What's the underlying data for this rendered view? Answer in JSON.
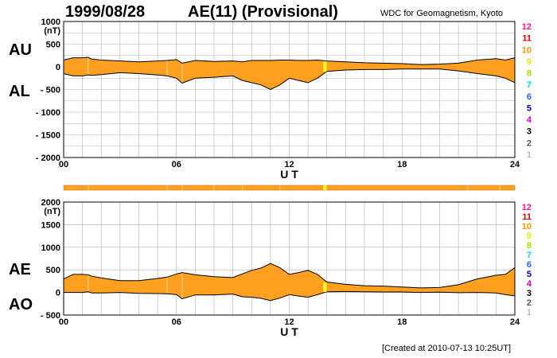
{
  "header": {
    "date": "1999/08/28",
    "title": "AE(11) (Provisional)",
    "credit": "WDC for Geomagnetism, Kyoto"
  },
  "footer": {
    "created": "[Created at 2010-07-13 10:25UT]"
  },
  "colors": {
    "fill": "#ffa020",
    "spike": "#ffff20",
    "grid": "#b0b0b0",
    "outline": "#000000",
    "bar": "#ffa020"
  },
  "station_scale": {
    "labels": [
      "12",
      "11",
      "10",
      "9",
      "8",
      "7",
      "6",
      "5",
      "4",
      "3",
      "2",
      "1"
    ],
    "colors": [
      "#ff1493",
      "#e00000",
      "#ff9900",
      "#e8e800",
      "#a0e000",
      "#00d8d8",
      "#1e66ff",
      "#0000b0",
      "#d000d0",
      "#000000",
      "#555555",
      "#bbbbbb"
    ]
  },
  "chart_data": [
    {
      "type": "area",
      "upper_label": "AU",
      "lower_label": "AL",
      "ylabel": "(nT)",
      "xlabel": "U T",
      "xlim": [
        0,
        24
      ],
      "xticks": [
        "00",
        "06",
        "12",
        "18",
        "24"
      ],
      "ylim": [
        -2000,
        1000
      ],
      "yticks": [
        "1000",
        "500",
        "0",
        "- 500",
        "- 1000",
        "- 1500",
        "- 2000"
      ],
      "grid": true,
      "x": [
        0,
        0.5,
        1,
        1.3,
        1.5,
        2,
        3,
        4,
        5,
        5.5,
        6,
        6.3,
        7,
        8,
        9,
        9.5,
        10,
        10.5,
        11,
        11.5,
        12,
        12.5,
        13,
        13.5,
        14,
        15,
        16,
        17,
        18,
        19,
        20,
        21,
        22,
        23,
        23.5,
        24
      ],
      "series": [
        {
          "name": "AU",
          "values": [
            150,
            200,
            200,
            210,
            170,
            150,
            130,
            110,
            130,
            140,
            160,
            80,
            140,
            120,
            130,
            110,
            140,
            140,
            140,
            150,
            150,
            140,
            140,
            150,
            130,
            110,
            90,
            80,
            70,
            50,
            60,
            80,
            150,
            180,
            150,
            200
          ]
        },
        {
          "name": "AL",
          "values": [
            -150,
            -200,
            -200,
            -180,
            -190,
            -170,
            -130,
            -150,
            -180,
            -200,
            -250,
            -360,
            -250,
            -230,
            -200,
            -300,
            -350,
            -400,
            -500,
            -400,
            -250,
            -300,
            -350,
            -250,
            -100,
            -70,
            -60,
            -60,
            -50,
            -50,
            -50,
            -90,
            -150,
            -200,
            -250,
            -350
          ]
        }
      ]
    },
    {
      "type": "area",
      "upper_label": "AE",
      "lower_label": "AO",
      "ylabel": "(nT)",
      "xlabel": "U T",
      "xlim": [
        0,
        24
      ],
      "xticks": [
        "00",
        "06",
        "12",
        "18",
        "24"
      ],
      "ylim": [
        -500,
        2000
      ],
      "yticks": [
        "2000",
        "1500",
        "1000",
        "500",
        "0",
        "- 500"
      ],
      "grid": true,
      "x": [
        0,
        0.5,
        1,
        1.3,
        1.5,
        2,
        3,
        4,
        5,
        5.5,
        6,
        6.3,
        7,
        8,
        9,
        9.5,
        10,
        10.5,
        11,
        11.5,
        12,
        12.5,
        13,
        13.5,
        14,
        15,
        16,
        17,
        18,
        19,
        20,
        21,
        22,
        23,
        23.5,
        24
      ],
      "series": [
        {
          "name": "AE",
          "values": [
            300,
            400,
            400,
            390,
            360,
            320,
            260,
            260,
            310,
            340,
            410,
            440,
            390,
            350,
            330,
            410,
            490,
            540,
            640,
            550,
            400,
            440,
            490,
            400,
            230,
            180,
            150,
            140,
            120,
            100,
            110,
            170,
            300,
            380,
            400,
            550
          ]
        },
        {
          "name": "AO",
          "values": [
            0,
            0,
            0,
            15,
            -10,
            -10,
            0,
            -20,
            -25,
            -30,
            -45,
            -140,
            -55,
            -55,
            -35,
            -95,
            -105,
            -130,
            -180,
            -125,
            -50,
            -80,
            -105,
            -50,
            15,
            20,
            15,
            10,
            10,
            0,
            5,
            -5,
            0,
            -10,
            -50,
            -75
          ]
        }
      ]
    }
  ]
}
